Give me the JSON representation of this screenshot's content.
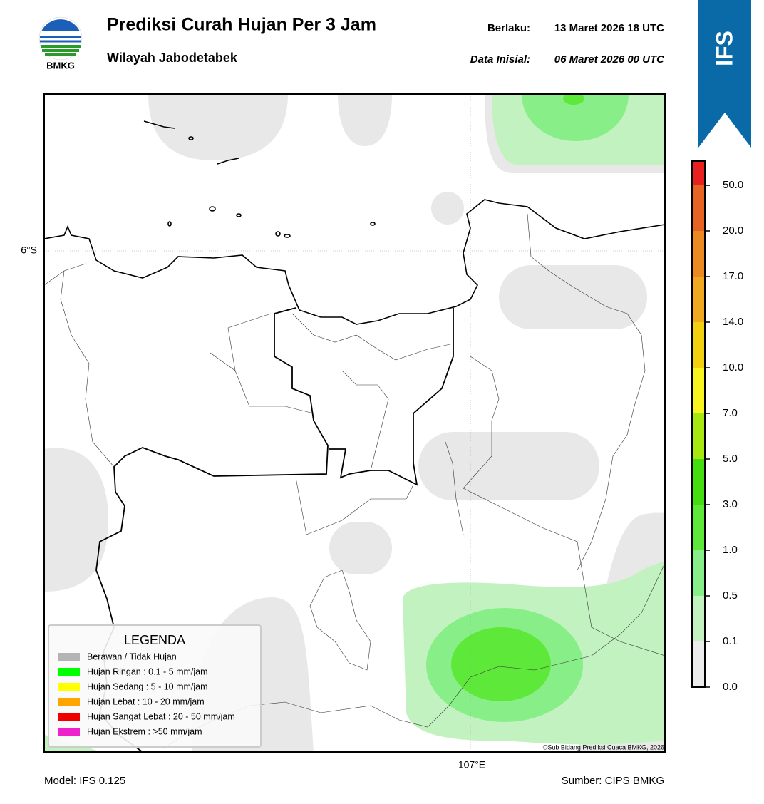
{
  "header": {
    "logo_text": "BMKG",
    "title": "Prediksi Curah Hujan Per 3 Jam",
    "subtitle": "Wilayah Jabodetabek",
    "valid_label": "Berlaku:",
    "valid_time": "13 Maret 2026 18 UTC",
    "init_label": "Data Inisial:",
    "init_time": "06 Maret 2026 00 UTC",
    "badge": "IFS"
  },
  "map": {
    "lat_label": "6°S",
    "lon_label": "107°E",
    "credit": "©Sub Bidang Prediksi Cuaca BMKG, 2026"
  },
  "legend": {
    "title": "LEGENDA",
    "items": [
      {
        "label": "Berawan / Tidak Hujan",
        "color": "#b4b4b4"
      },
      {
        "label": "Hujan Ringan : 0.1 - 5 mm/jam",
        "color": "#00ff00"
      },
      {
        "label": "Hujan Sedang : 5 - 10 mm/jam",
        "color": "#ffff00"
      },
      {
        "label": "Hujan Lebat : 10 - 20 mm/jam",
        "color": "#ffa500"
      },
      {
        "label": "Hujan Sangat Lebat : 20 - 50 mm/jam",
        "color": "#ee0000"
      },
      {
        "label": "Hujan Ekstrem : >50 mm/jam",
        "color": "#ee22cc"
      }
    ]
  },
  "colorbar": {
    "ticks": [
      "0.0",
      "0.1",
      "0.5",
      "1.0",
      "3.0",
      "5.0",
      "7.0",
      "10.0",
      "14.0",
      "17.0",
      "20.0",
      "50.0"
    ],
    "colors": [
      "#ececec",
      "#c2f2c0",
      "#88ee88",
      "#5ee83a",
      "#44dd10",
      "#a8e812",
      "#f8f420",
      "#f0d010",
      "#f0a820",
      "#ec8a22",
      "#e86424",
      "#e82020",
      "#e020c0"
    ]
  },
  "footer": {
    "model": "Model: IFS 0.125",
    "source": "Sumber: CIPS BMKG"
  }
}
